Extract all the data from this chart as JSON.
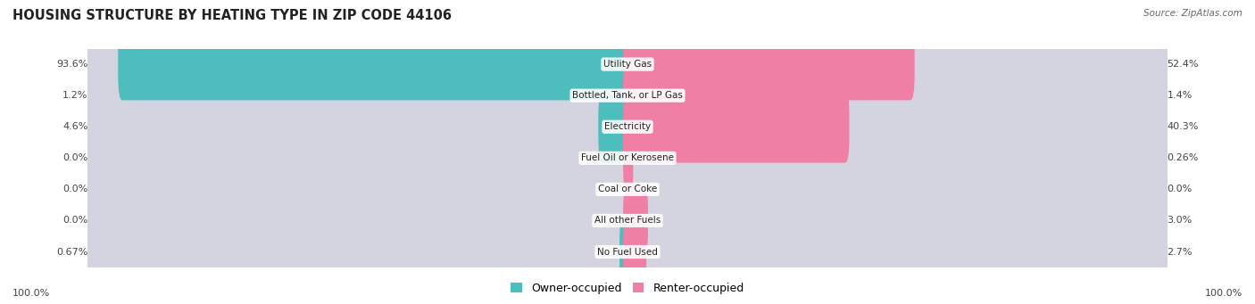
{
  "title": "HOUSING STRUCTURE BY HEATING TYPE IN ZIP CODE 44106",
  "source": "Source: ZipAtlas.com",
  "categories": [
    "Utility Gas",
    "Bottled, Tank, or LP Gas",
    "Electricity",
    "Fuel Oil or Kerosene",
    "Coal or Coke",
    "All other Fuels",
    "No Fuel Used"
  ],
  "owner_values": [
    93.6,
    1.2,
    4.6,
    0.0,
    0.0,
    0.0,
    0.67
  ],
  "renter_values": [
    52.4,
    1.4,
    40.3,
    0.26,
    0.0,
    3.0,
    2.7
  ],
  "owner_labels": [
    "93.6%",
    "1.2%",
    "4.6%",
    "0.0%",
    "0.0%",
    "0.0%",
    "0.67%"
  ],
  "renter_labels": [
    "52.4%",
    "1.4%",
    "40.3%",
    "0.26%",
    "0.0%",
    "3.0%",
    "2.7%"
  ],
  "owner_color": "#4dbdbe",
  "renter_color": "#f07fa5",
  "row_bg_even": "#e8e8f0",
  "row_bg_odd": "#f2f2f7",
  "track_color": "#d4d4e0",
  "title_fontsize": 10.5,
  "label_fontsize": 8,
  "legend_fontsize": 9,
  "max_scale": 100.0,
  "bottom_left_label": "100.0%",
  "bottom_right_label": "100.0%",
  "owner_label": "Owner-occupied",
  "renter_label": "Renter-occupied"
}
